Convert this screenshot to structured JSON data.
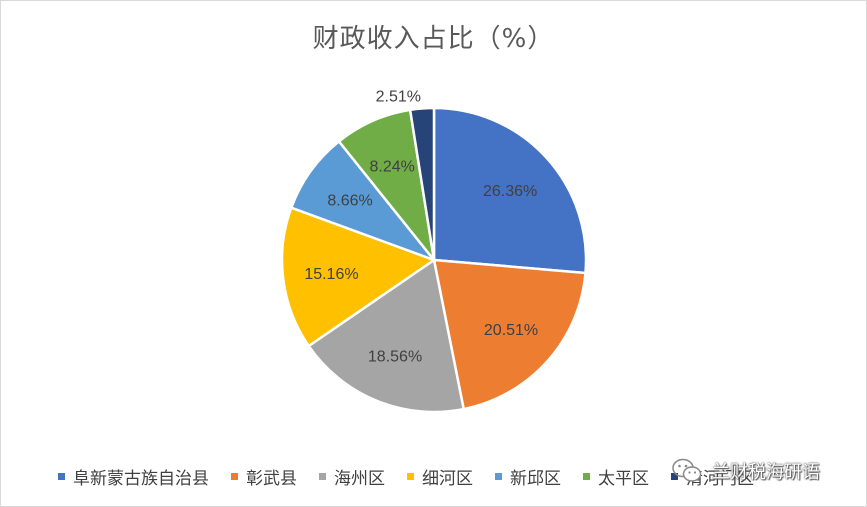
{
  "chart_data": {
    "type": "pie",
    "title": "财政收入占比（%）",
    "categories": [
      "阜新蒙古族自治县",
      "彰武县",
      "海州区",
      "细河区",
      "新邱区",
      "太平区",
      "清河门区"
    ],
    "values": [
      26.36,
      20.51,
      18.56,
      15.16,
      8.66,
      8.24,
      2.51
    ],
    "data_labels": [
      "26.36%",
      "20.51%",
      "18.56%",
      "15.16%",
      "8.66%",
      "8.24%",
      "2.51%"
    ],
    "colors": [
      "#4472c4",
      "#ed7d31",
      "#a5a5a5",
      "#ffc000",
      "#5b9bd5",
      "#70ad47",
      "#264478"
    ],
    "legend_position": "bottom",
    "start_angle": "12 o'clock, clockwise"
  },
  "watermark": {
    "icon": "wechat-icon",
    "text": "兰财税海研语"
  }
}
